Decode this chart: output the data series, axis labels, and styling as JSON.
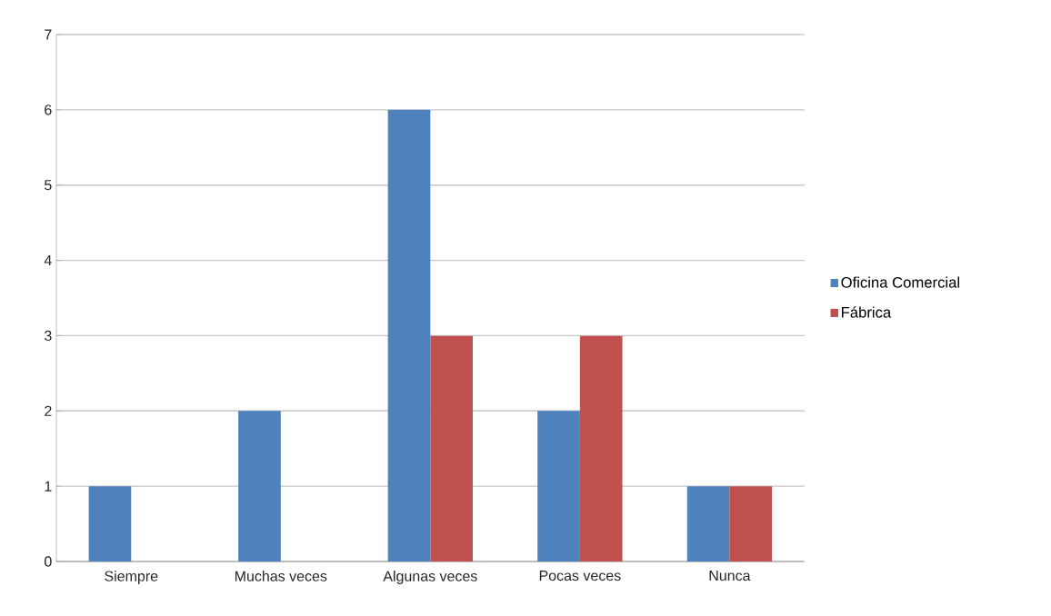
{
  "chart_data": {
    "type": "bar",
    "categories": [
      "Siempre",
      "Muchas veces",
      "Algunas veces",
      "Pocas veces",
      "Nunca"
    ],
    "series": [
      {
        "name": "Oficina Comercial",
        "color": "#4f81bd",
        "values": [
          1,
          2,
          6,
          2,
          1
        ]
      },
      {
        "name": "Fábrica",
        "color": "#c0504d",
        "values": [
          0,
          0,
          3,
          3,
          1
        ]
      }
    ],
    "ylim": [
      0,
      7
    ],
    "yticks": [
      0,
      1,
      2,
      3,
      4,
      5,
      6,
      7
    ],
    "grid": "y",
    "legend": "right"
  }
}
